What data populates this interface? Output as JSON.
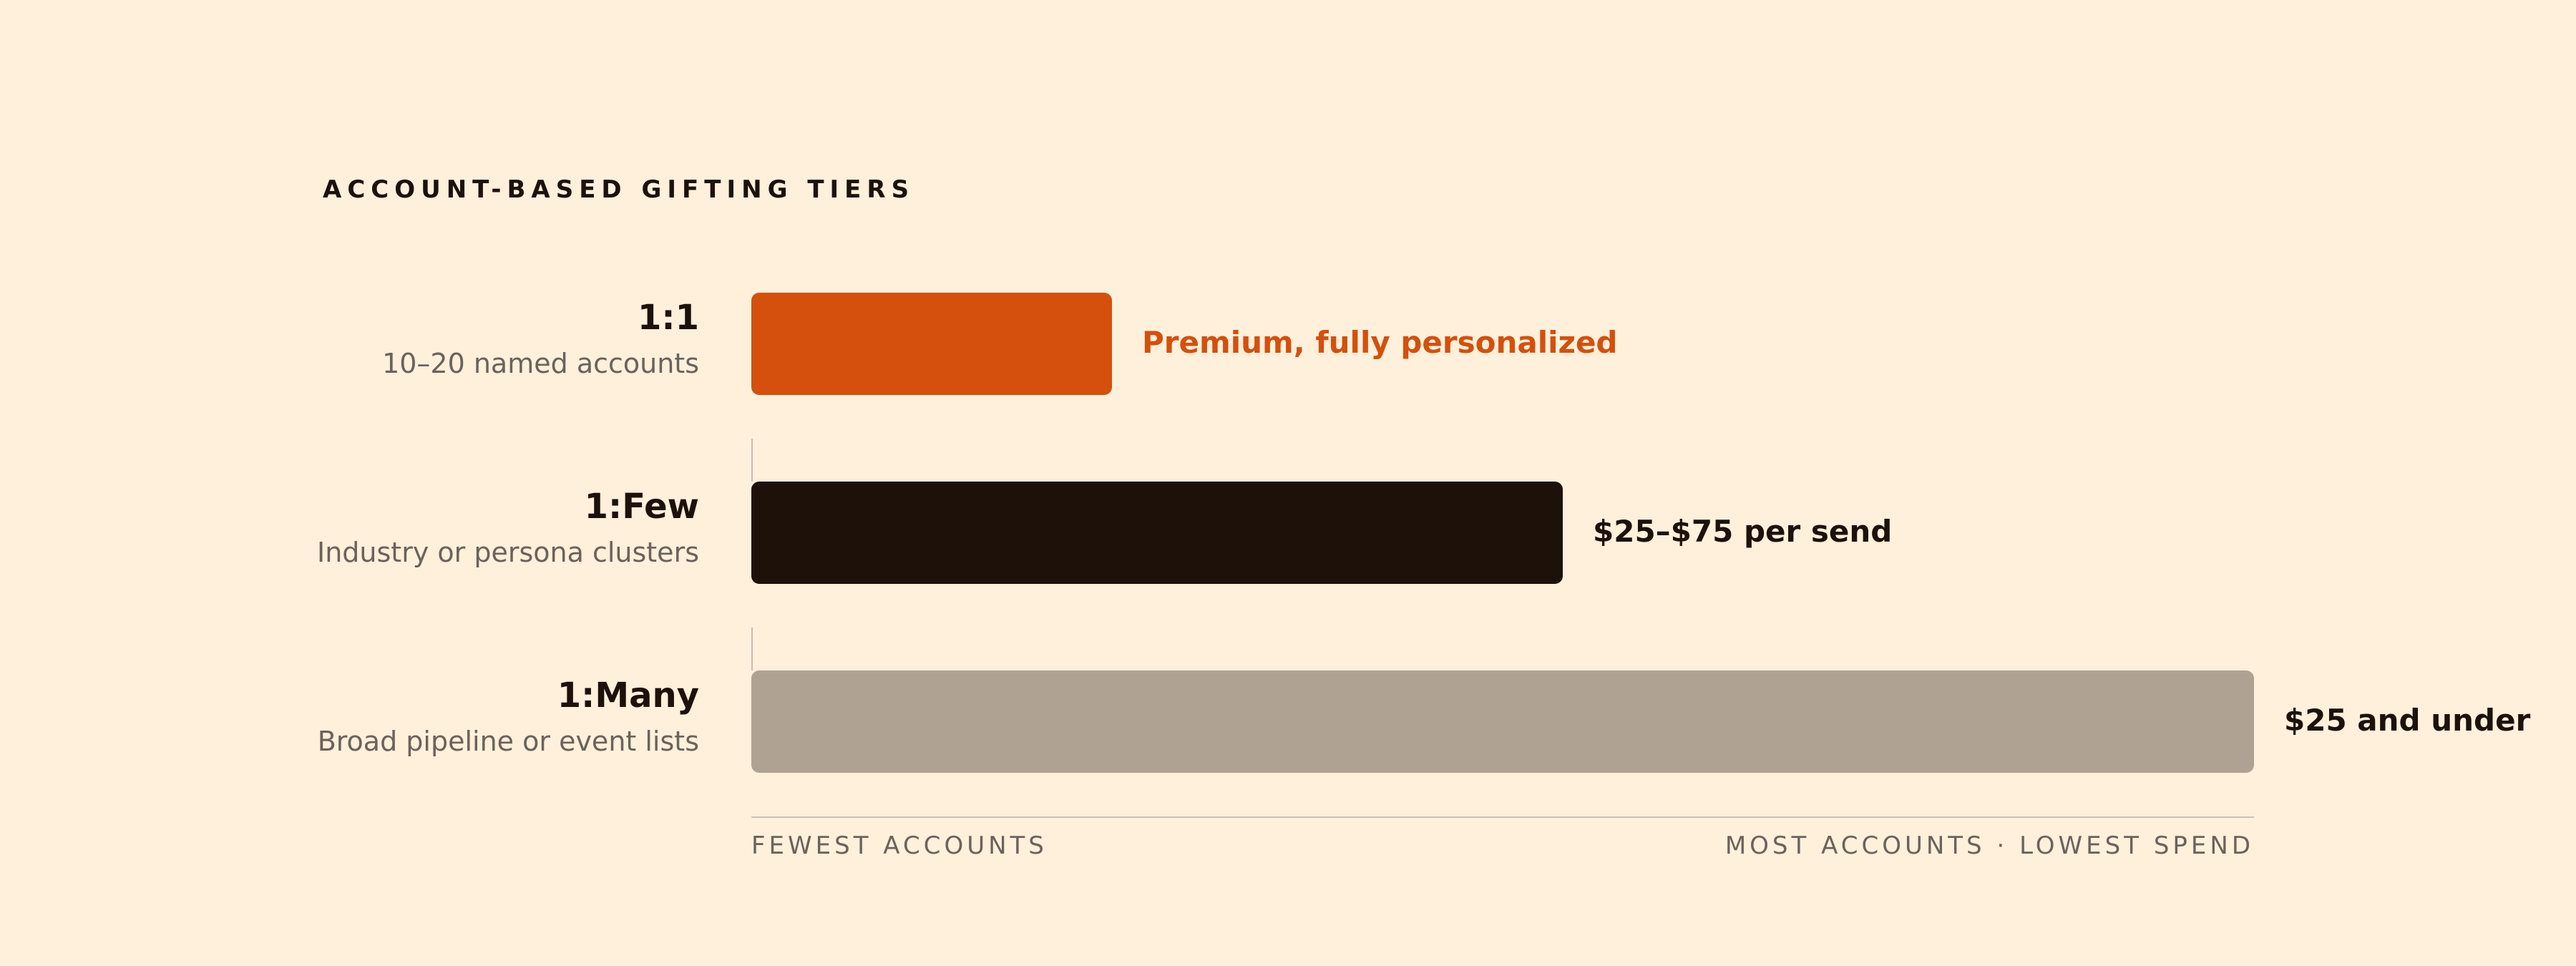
{
  "chart_data": {
    "type": "bar",
    "orientation": "horizontal",
    "title": "ACCOUNT-BASED GIFTING TIERS",
    "categories": [
      "1:1",
      "1:Few",
      "1:Many"
    ],
    "subtitles": [
      "10–20 named accounts",
      "Industry or persona clusters",
      "Broad pipeline or event lists"
    ],
    "values": [
      0.24,
      0.54,
      1.0
    ],
    "bar_labels": [
      "Premium, fully personalized",
      "$25–$75 per send",
      "$25 and under"
    ],
    "colors": [
      "#D4500C",
      "#1D1109",
      "#B0A292"
    ],
    "label_colors": [
      "#D4500C",
      "#1D1109",
      "#1D1109"
    ],
    "x_axis": {
      "left_label": "FEWEST ACCOUNTS",
      "right_label": "MOST ACCOUNTS · LOWEST SPEND"
    },
    "xlim": [
      0,
      1
    ]
  }
}
